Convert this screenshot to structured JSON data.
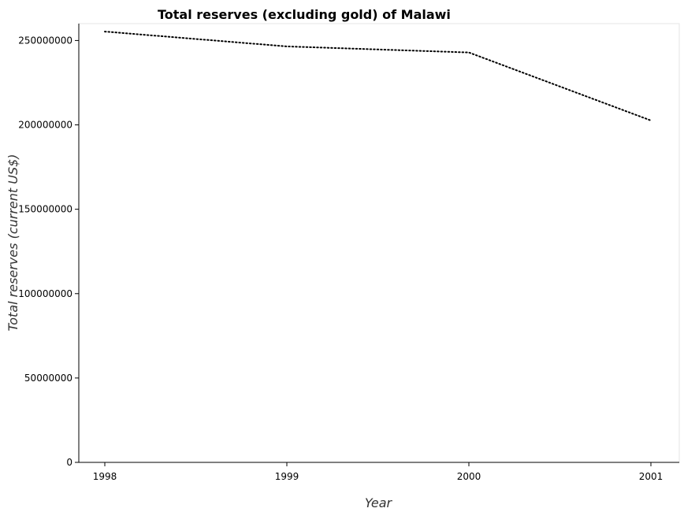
{
  "chart_data": {
    "type": "line",
    "title": "Total reserves (excluding gold) of Malawi",
    "xlabel": "Year",
    "ylabel": "Total reserves (current US$)",
    "categories": [
      "1998",
      "1999",
      "2000",
      "2001"
    ],
    "series": [
      {
        "values": [
          255300000,
          246500000,
          242900000,
          202600000
        ]
      }
    ],
    "ylim": [
      0,
      260000000
    ],
    "yticks": [
      0,
      50000000,
      100000000,
      150000000,
      200000000,
      250000000
    ],
    "ytick_labels": [
      "0",
      "50000000",
      "100000000",
      "150000000",
      "200000000",
      "250000000"
    ],
    "grid": false,
    "legend": "none",
    "colors": {
      "line": "#000000",
      "axis": "#000000",
      "frame": "#e6e6e6"
    }
  }
}
